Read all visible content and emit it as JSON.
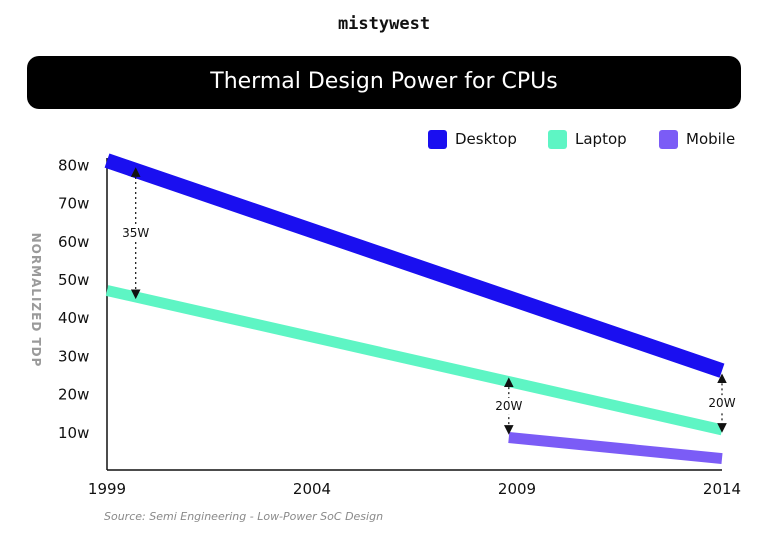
{
  "brand": "mistywest",
  "chart_data": {
    "type": "line",
    "title": "Thermal Design Power for CPUs",
    "ylabel": "NORMALIZED TDP",
    "xlabel": "",
    "xlim": [
      1999,
      2014
    ],
    "ylim": [
      0,
      85
    ],
    "x_ticks": [
      "1999",
      "2004",
      "2009",
      "2014"
    ],
    "y_ticks": [
      "80w",
      "70w",
      "60w",
      "50w",
      "40w",
      "30w",
      "20w",
      "10w"
    ],
    "y_tick_values": [
      80,
      70,
      60,
      50,
      40,
      30,
      20,
      10
    ],
    "legend_position": "top-right",
    "grid": false,
    "series": [
      {
        "name": "Desktop",
        "color": "#1a0ff0",
        "x": [
          1999,
          2014
        ],
        "y": [
          81,
          26
        ]
      },
      {
        "name": "Laptop",
        "color": "#5ef5c4",
        "x": [
          1999,
          2014
        ],
        "y": [
          47,
          10.5
        ]
      },
      {
        "name": "Mobile",
        "color": "#7b5cf6",
        "x": [
          2008.8,
          2014
        ],
        "y": [
          8.5,
          3
        ]
      }
    ],
    "annotations": [
      {
        "text": "35W",
        "x": 1999.7,
        "y_from": 78,
        "y_to": 46
      },
      {
        "text": "20W",
        "x": 2008.8,
        "y_from": 23,
        "y_to": 10.5
      },
      {
        "text": "20W",
        "x": 2014,
        "y_from": 24,
        "y_to": 11
      }
    ]
  },
  "source": "Source: Semi Engineering - Low-Power SoC Design"
}
